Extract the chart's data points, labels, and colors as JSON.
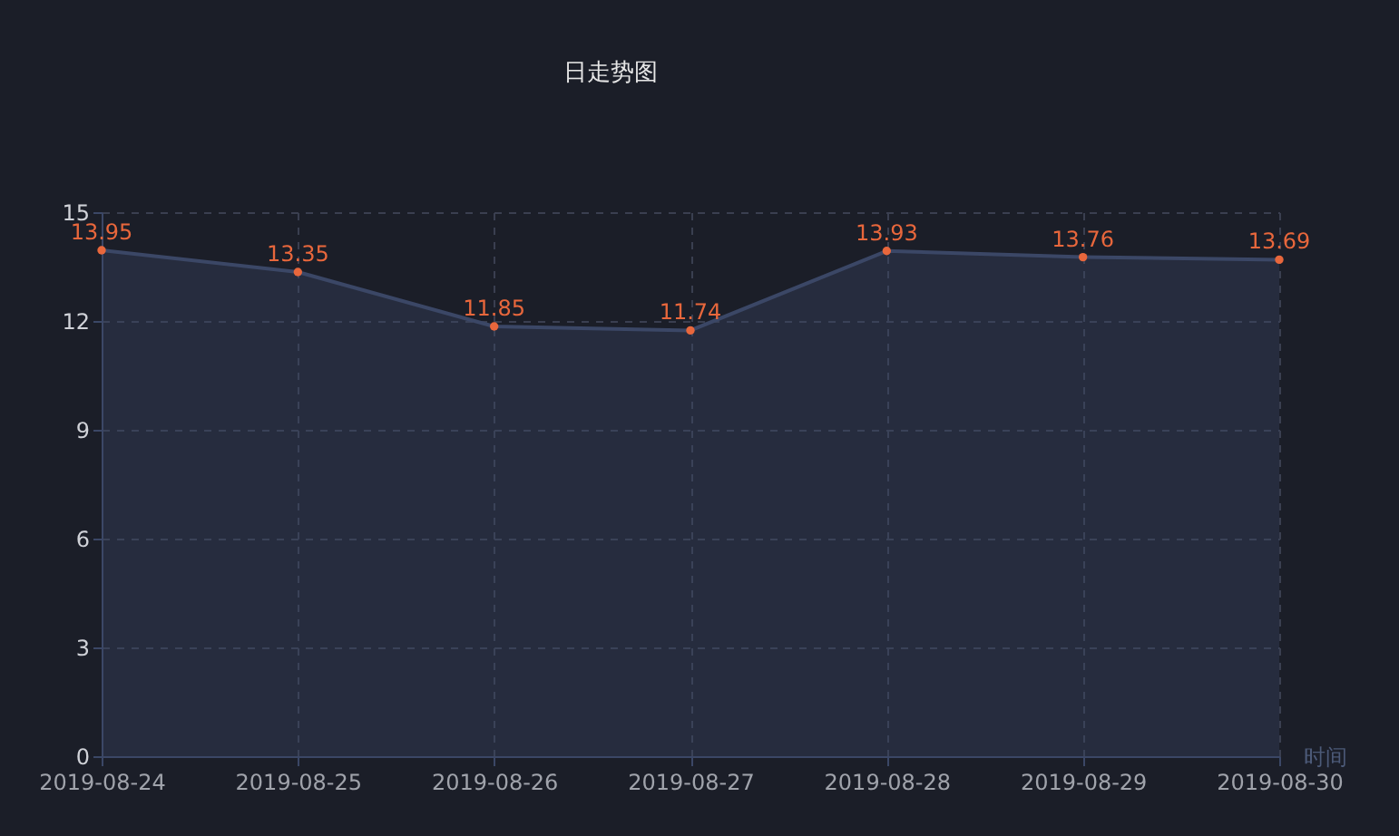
{
  "chart_data": {
    "type": "area",
    "title": "日走势图",
    "xlabel": "时间",
    "categories": [
      "2019-08-24",
      "2019-08-25",
      "2019-08-26",
      "2019-08-27",
      "2019-08-28",
      "2019-08-29",
      "2019-08-30"
    ],
    "series": [
      {
        "color": "#3b4766",
        "values": [
          13.95,
          13.35,
          11.85,
          11.74,
          13.93,
          13.76,
          13.69
        ]
      }
    ],
    "ylim": [
      0,
      15
    ],
    "yticks": [
      0,
      3,
      6,
      9,
      12,
      15
    ],
    "grid": true,
    "marker": "circle",
    "data_labels": true
  }
}
